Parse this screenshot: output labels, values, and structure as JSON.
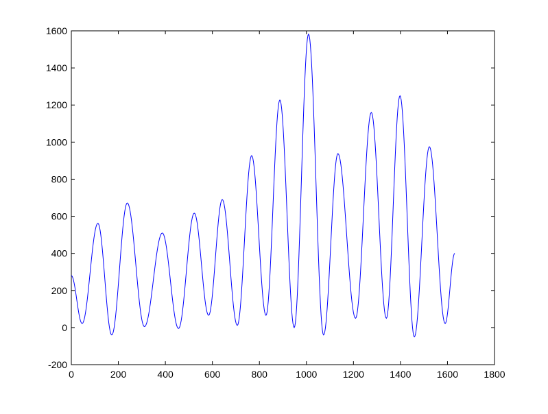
{
  "chart_data": {
    "type": "line",
    "title": "",
    "xlabel": "",
    "ylabel": "",
    "xlim": [
      0,
      1800
    ],
    "ylim": [
      -200,
      1600
    ],
    "grid": false,
    "xticks": [
      0,
      200,
      400,
      600,
      800,
      1000,
      1200,
      1400,
      1600,
      1800
    ],
    "yticks": [
      -200,
      0,
      200,
      400,
      600,
      800,
      1000,
      1200,
      1400,
      1600
    ],
    "line_color": "#0000ff",
    "series": [
      {
        "extrema_x": [
          0,
          46,
          113,
          172,
          238,
          311,
          387,
          456,
          523,
          584,
          642,
          706,
          767,
          828,
          887,
          948,
          1009,
          1073,
          1134,
          1209,
          1276,
          1340,
          1398,
          1459,
          1523,
          1590,
          1631
        ],
        "extrema_y": [
          280,
          22,
          562,
          -40,
          672,
          5,
          510,
          -5,
          617,
          66,
          690,
          12,
          927,
          66,
          1227,
          0,
          1582,
          -40,
          938,
          50,
          1160,
          50,
          1250,
          -50,
          975,
          22,
          400
        ]
      }
    ]
  }
}
